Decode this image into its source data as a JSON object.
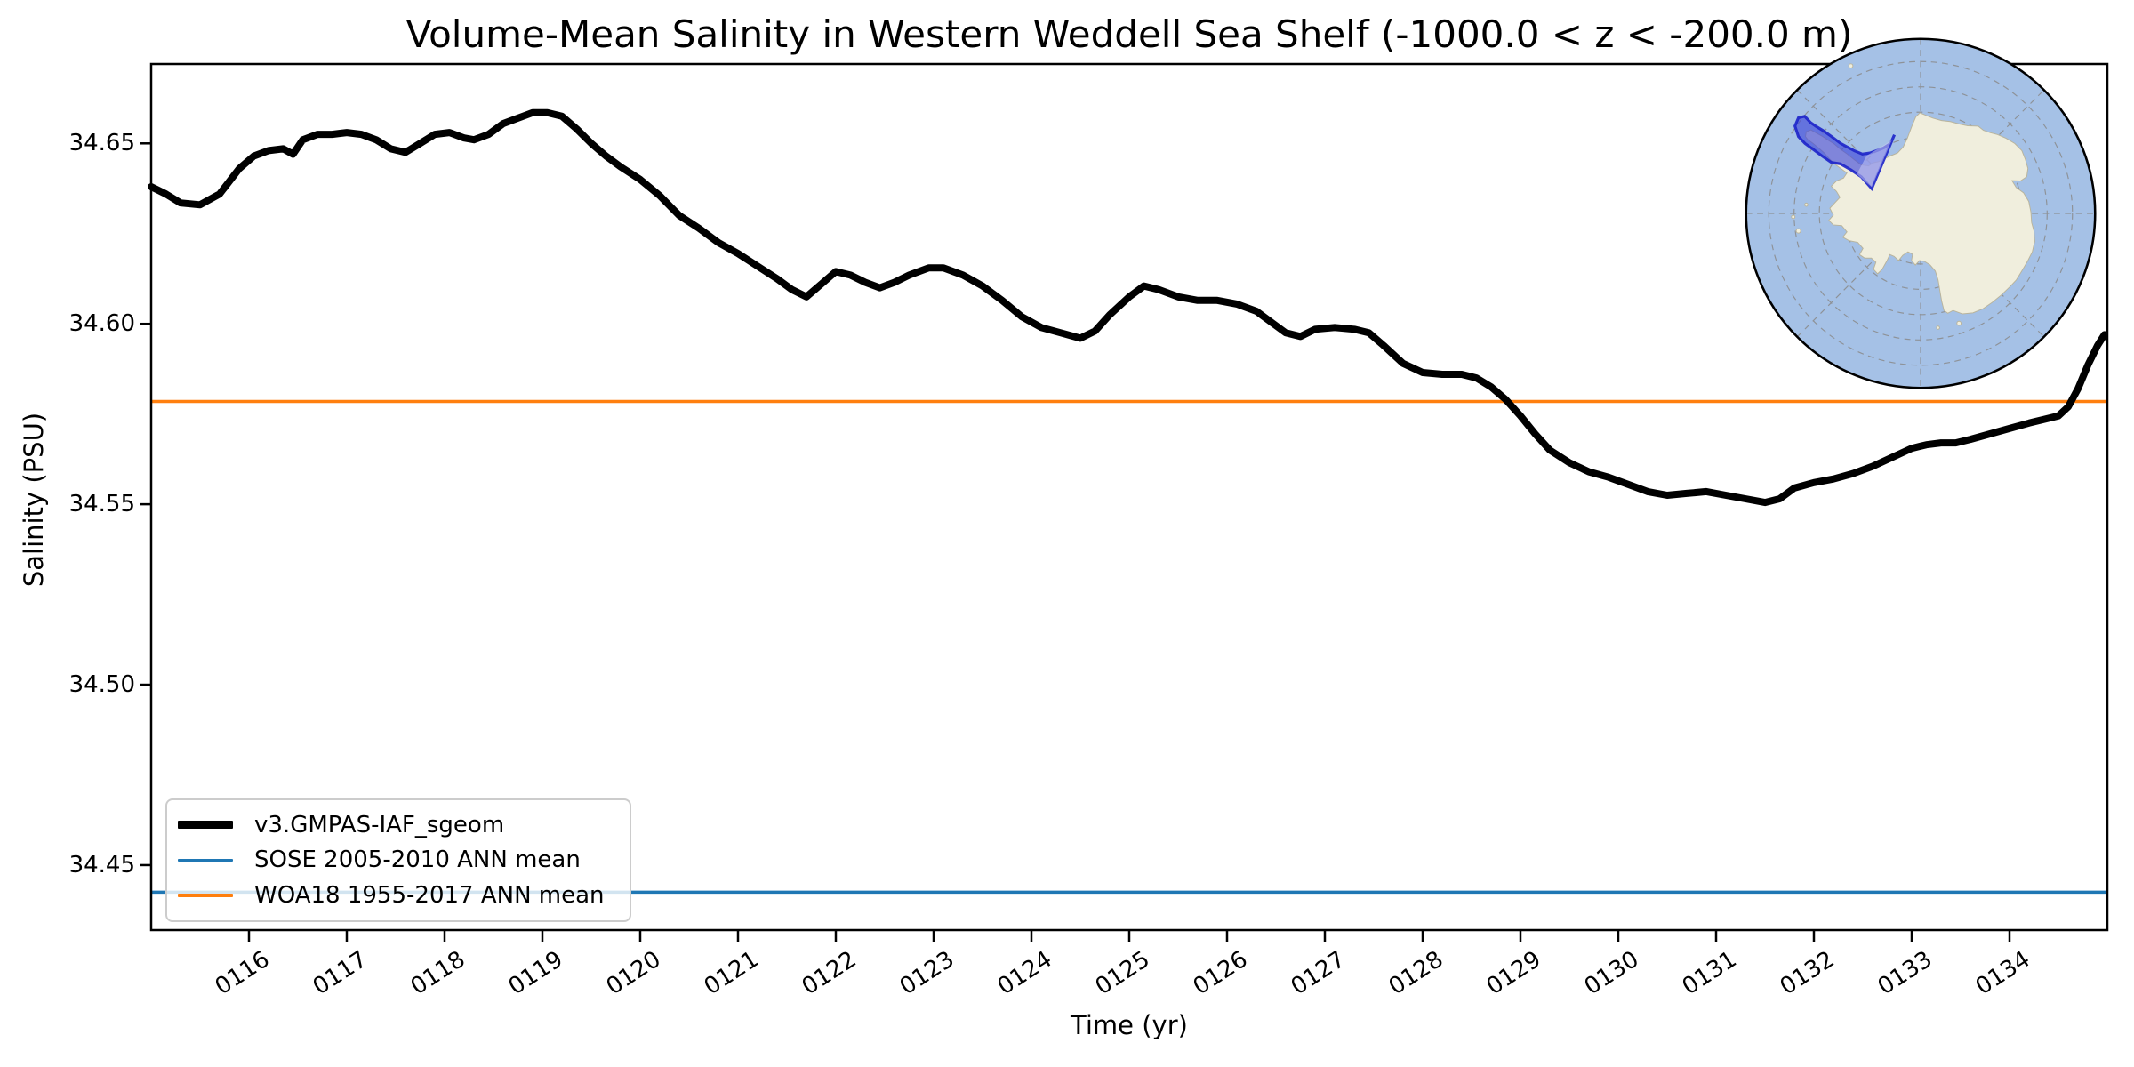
{
  "title": "Volume-Mean Salinity in Western Weddell Sea Shelf (-1000.0 < z < -200.0 m)",
  "axes": {
    "xlabel": "Time (yr)",
    "ylabel": "Salinity (PSU)",
    "x_ticks": [
      [
        116,
        "0116"
      ],
      [
        117,
        "0117"
      ],
      [
        118,
        "0118"
      ],
      [
        119,
        "0119"
      ],
      [
        120,
        "0120"
      ],
      [
        121,
        "0121"
      ],
      [
        122,
        "0122"
      ],
      [
        123,
        "0123"
      ],
      [
        124,
        "0124"
      ],
      [
        125,
        "0125"
      ],
      [
        126,
        "0126"
      ],
      [
        127,
        "0127"
      ],
      [
        128,
        "0128"
      ],
      [
        129,
        "0129"
      ],
      [
        130,
        "0130"
      ],
      [
        131,
        "0131"
      ],
      [
        132,
        "0132"
      ],
      [
        133,
        "0133"
      ],
      [
        134,
        "0134"
      ]
    ],
    "y_ticks": [
      [
        34.45,
        "34.45"
      ],
      [
        34.5,
        "34.50"
      ],
      [
        34.55,
        "34.55"
      ],
      [
        34.6,
        "34.60"
      ],
      [
        34.65,
        "34.65"
      ]
    ]
  },
  "legend": {
    "items": [
      {
        "label": "v3.GMPAS-IAF_sgeom",
        "color": "#000000"
      },
      {
        "label": "SOSE 2005-2010 ANN mean",
        "color": "#1f77b4"
      },
      {
        "label": "WOA18 1955-2017 ANN mean",
        "color": "#ff7f0e"
      }
    ]
  },
  "inset_map": {
    "description": "South polar stereographic map of Antarctica with the Western Weddell Sea shelf region highlighted",
    "ocean_color": "#a5c1e6",
    "land_color": "#f0eedd",
    "highlight_color": "#3b43d9",
    "highlight_light_color": "#c7c9f2"
  },
  "chart_data": {
    "type": "line",
    "title": "Volume-Mean Salinity in Western Weddell Sea Shelf (-1000.0 < z < -200.0 m)",
    "xlabel": "Time (yr)",
    "ylabel": "Salinity (PSU)",
    "xlim": [
      115.0,
      135.0
    ],
    "ylim": [
      34.432,
      34.672
    ],
    "grid": false,
    "legend_position": "lower left",
    "series": [
      {
        "name": "v3.GMPAS-IAF_sgeom",
        "color": "#000000",
        "points": [
          [
            115.0,
            34.638
          ],
          [
            115.15,
            34.636
          ],
          [
            115.3,
            34.6335
          ],
          [
            115.5,
            34.633
          ],
          [
            115.7,
            34.636
          ],
          [
            115.9,
            34.643
          ],
          [
            116.05,
            34.6465
          ],
          [
            116.2,
            34.648
          ],
          [
            116.35,
            34.6485
          ],
          [
            116.45,
            34.647
          ],
          [
            116.55,
            34.651
          ],
          [
            116.7,
            34.6525
          ],
          [
            116.85,
            34.6525
          ],
          [
            117.0,
            34.653
          ],
          [
            117.15,
            34.6525
          ],
          [
            117.3,
            34.651
          ],
          [
            117.45,
            34.6485
          ],
          [
            117.6,
            34.6475
          ],
          [
            117.75,
            34.65
          ],
          [
            117.9,
            34.6525
          ],
          [
            118.05,
            34.653
          ],
          [
            118.2,
            34.6515
          ],
          [
            118.3,
            34.651
          ],
          [
            118.45,
            34.6525
          ],
          [
            118.6,
            34.6555
          ],
          [
            118.75,
            34.657
          ],
          [
            118.9,
            34.6585
          ],
          [
            119.05,
            34.6585
          ],
          [
            119.2,
            34.6575
          ],
          [
            119.35,
            34.654
          ],
          [
            119.5,
            34.65
          ],
          [
            119.65,
            34.6465
          ],
          [
            119.8,
            34.6435
          ],
          [
            120.0,
            34.64
          ],
          [
            120.2,
            34.6355
          ],
          [
            120.4,
            34.63
          ],
          [
            120.6,
            34.6265
          ],
          [
            120.8,
            34.6225
          ],
          [
            121.0,
            34.6195
          ],
          [
            121.2,
            34.616
          ],
          [
            121.4,
            34.6125
          ],
          [
            121.55,
            34.6095
          ],
          [
            121.7,
            34.6075
          ],
          [
            121.85,
            34.611
          ],
          [
            122.0,
            34.6145
          ],
          [
            122.15,
            34.6135
          ],
          [
            122.3,
            34.6115
          ],
          [
            122.45,
            34.61
          ],
          [
            122.6,
            34.6115
          ],
          [
            122.75,
            34.6135
          ],
          [
            122.95,
            34.6155
          ],
          [
            123.1,
            34.6155
          ],
          [
            123.3,
            34.6135
          ],
          [
            123.5,
            34.6105
          ],
          [
            123.7,
            34.6065
          ],
          [
            123.9,
            34.602
          ],
          [
            124.1,
            34.599
          ],
          [
            124.3,
            34.5975
          ],
          [
            124.5,
            34.596
          ],
          [
            124.65,
            34.598
          ],
          [
            124.8,
            34.6025
          ],
          [
            125.0,
            34.6075
          ],
          [
            125.15,
            34.6105
          ],
          [
            125.3,
            34.6095
          ],
          [
            125.5,
            34.6075
          ],
          [
            125.7,
            34.6065
          ],
          [
            125.9,
            34.6065
          ],
          [
            126.1,
            34.6055
          ],
          [
            126.3,
            34.6035
          ],
          [
            126.45,
            34.6005
          ],
          [
            126.6,
            34.5975
          ],
          [
            126.75,
            34.5965
          ],
          [
            126.9,
            34.5985
          ],
          [
            127.1,
            34.599
          ],
          [
            127.3,
            34.5985
          ],
          [
            127.45,
            34.5975
          ],
          [
            127.6,
            34.594
          ],
          [
            127.8,
            34.589
          ],
          [
            128.0,
            34.5865
          ],
          [
            128.2,
            34.586
          ],
          [
            128.4,
            34.586
          ],
          [
            128.55,
            34.585
          ],
          [
            128.7,
            34.5825
          ],
          [
            128.85,
            34.579
          ],
          [
            129.0,
            34.5745
          ],
          [
            129.15,
            34.5695
          ],
          [
            129.3,
            34.565
          ],
          [
            129.5,
            34.5615
          ],
          [
            129.7,
            34.559
          ],
          [
            129.9,
            34.5575
          ],
          [
            130.1,
            34.5555
          ],
          [
            130.3,
            34.5535
          ],
          [
            130.5,
            34.5525
          ],
          [
            130.7,
            34.553
          ],
          [
            130.9,
            34.5535
          ],
          [
            131.1,
            34.5525
          ],
          [
            131.3,
            34.5515
          ],
          [
            131.5,
            34.5505
          ],
          [
            131.65,
            34.5515
          ],
          [
            131.8,
            34.5545
          ],
          [
            132.0,
            34.556
          ],
          [
            132.2,
            34.557
          ],
          [
            132.4,
            34.5585
          ],
          [
            132.6,
            34.5605
          ],
          [
            132.8,
            34.563
          ],
          [
            133.0,
            34.5655
          ],
          [
            133.15,
            34.5665
          ],
          [
            133.3,
            34.567
          ],
          [
            133.45,
            34.567
          ],
          [
            133.6,
            34.568
          ],
          [
            133.8,
            34.5695
          ],
          [
            134.0,
            34.571
          ],
          [
            134.2,
            34.5725
          ],
          [
            134.35,
            34.5735
          ],
          [
            134.5,
            34.5745
          ],
          [
            134.6,
            34.577
          ],
          [
            134.7,
            34.582
          ],
          [
            134.8,
            34.5885
          ],
          [
            134.9,
            34.594
          ],
          [
            134.97,
            34.597
          ]
        ]
      }
    ],
    "reference_lines": [
      {
        "name": "SOSE 2005-2010 ANN mean",
        "value": 34.4425,
        "color": "#1f77b4"
      },
      {
        "name": "WOA18 1955-2017 ANN mean",
        "value": 34.5785,
        "color": "#ff7f0e"
      }
    ]
  }
}
